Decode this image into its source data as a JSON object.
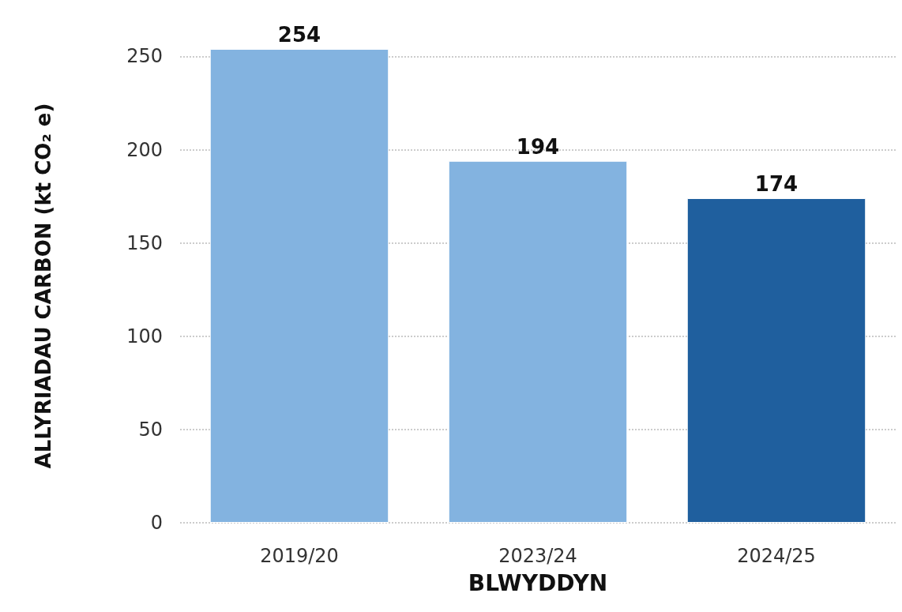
{
  "chart_data": {
    "type": "bar",
    "xlabel": "BLWYDDYN",
    "ylabel": "ALLYRIADAU CARBON (kt CO₂ e)",
    "categories": [
      "2019/20",
      "2023/24",
      "2024/25"
    ],
    "values": [
      254,
      194,
      174
    ],
    "colors": [
      "#83b3e0",
      "#83b3e0",
      "#1f5f9e"
    ],
    "ylim": [
      0,
      254
    ],
    "yticks": [
      0,
      50,
      100,
      150,
      200,
      250
    ],
    "grid": "y",
    "data_labels": true
  }
}
